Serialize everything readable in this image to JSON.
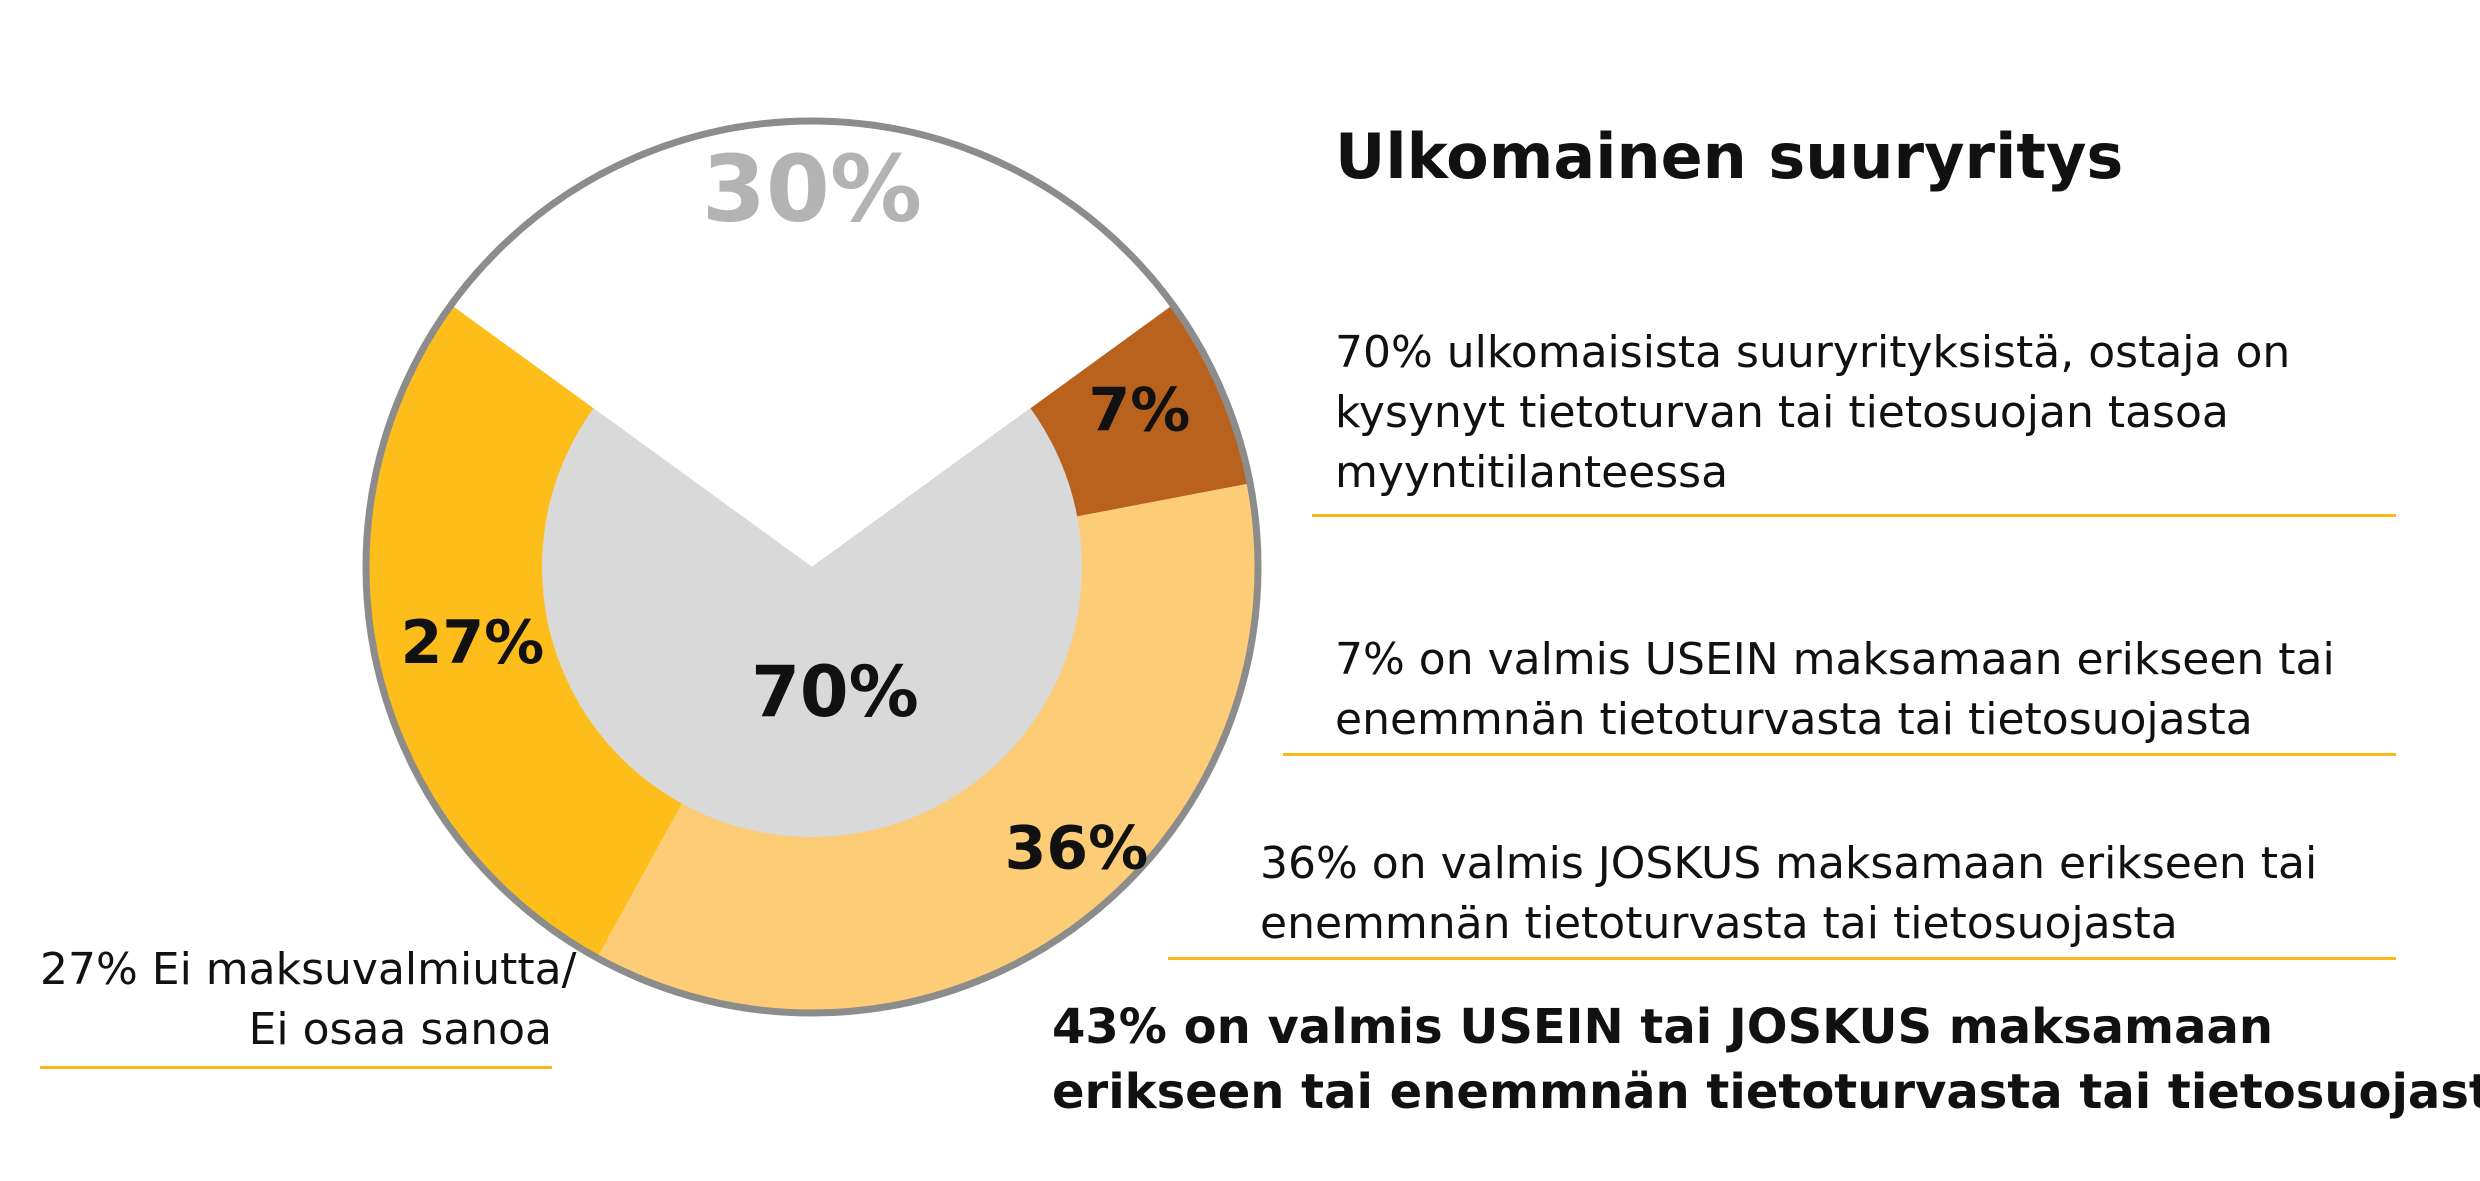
{
  "title": "Ulkomainen suuryritys",
  "notes": {
    "asked": [
      "70% ulkomaisista suuryrityksistä, ostaja on",
      "kysynyt tietoturvan tai tietosuojan tasoa",
      "myyntitilanteessa"
    ],
    "often": [
      "7% on valmis USEIN maksamaan erikseen tai",
      "enemmnän tietoturvasta tai tietosuojasta"
    ],
    "sometimes": [
      "36% on valmis JOSKUS maksamaan erikseen tai",
      "enemmnän tietoturvasta tai tietosuojasta"
    ],
    "none": [
      "27% Ei maksuvalmiutta/",
      "Ei osaa sanoa"
    ],
    "summary": [
      "43% on valmis USEIN tai JOSKUS maksamaan",
      "erikseen tai enemmnän tietoturvasta tai tietosuojasta"
    ]
  },
  "chart_data": {
    "type": "pie",
    "outer_ring": [
      {
        "label": "30%",
        "value": 30,
        "color": "#FFFFFF",
        "label_color": "#B3B3B3"
      },
      {
        "label": "7%",
        "value": 7,
        "color": "#B8621E",
        "label_color": "#111111"
      },
      {
        "label": "36%",
        "value": 36,
        "color": "#FCCC76",
        "label_color": "#111111"
      },
      {
        "label": "27%",
        "value": 27,
        "color": "#FDBD1B",
        "label_color": "#111111"
      }
    ],
    "inner": {
      "label": "70%",
      "value": 70,
      "color": "#D9D9D9"
    },
    "border_color": "#8C8C8C",
    "rule_color": "#FDB71A"
  }
}
